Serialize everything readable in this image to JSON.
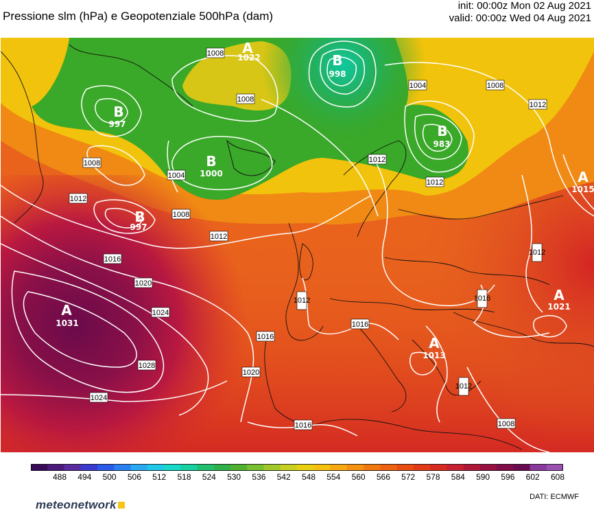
{
  "header": {
    "title": "Pressione slm (hPa) e Geopotenziale 500hPa (dam)",
    "init": "init: 00:00z Mon 02 Aug 2021",
    "valid": "valid: 00:00z Wed 04 Aug 2021"
  },
  "colorbar": {
    "labels": [
      "488",
      "494",
      "500",
      "506",
      "512",
      "518",
      "524",
      "530",
      "536",
      "542",
      "548",
      "554",
      "560",
      "566",
      "572",
      "578",
      "584",
      "590",
      "596",
      "602",
      "608"
    ]
  },
  "centers": [
    {
      "letter": "A",
      "value": "1022"
    },
    {
      "letter": "B",
      "value": "998"
    },
    {
      "letter": "B",
      "value": "997"
    },
    {
      "letter": "B",
      "value": "1000"
    },
    {
      "letter": "B",
      "value": "983"
    },
    {
      "letter": "B",
      "value": "997"
    },
    {
      "letter": "A",
      "value": "1015"
    },
    {
      "letter": "A",
      "value": "1031"
    },
    {
      "letter": "A",
      "value": "1021"
    },
    {
      "letter": "A",
      "value": "1013"
    }
  ],
  "isobar_labels": [
    "1008",
    "1008",
    "1004",
    "1012",
    "1008",
    "1004",
    "1012",
    "1008",
    "1012",
    "1008",
    "1012",
    "1016",
    "1020",
    "1024",
    "1028",
    "1016",
    "1012",
    "1016",
    "1020",
    "1024",
    "1016",
    "1012",
    "1016",
    "1012",
    "1012",
    "1008"
  ],
  "brand": "meteonetwork",
  "source": "DATI:  ECMWF"
}
